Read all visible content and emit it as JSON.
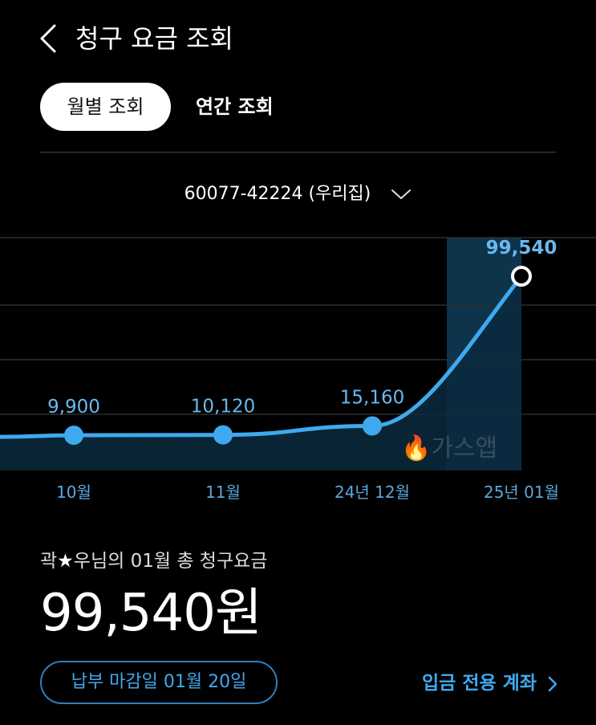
{
  "header": {
    "title": "청구 요금 조회",
    "back_icon": "chevron-left-icon"
  },
  "tabs": [
    {
      "label": "월별 조회",
      "selected": true
    },
    {
      "label": "연간 조회",
      "selected": false
    }
  ],
  "account": {
    "label": "60077-42224 (우리집)",
    "dropdown_icon": "chevron-down-icon"
  },
  "chart_data": {
    "type": "line",
    "categories": [
      "10월",
      "11월",
      "24년 12월",
      "25년 01월"
    ],
    "values": [
      9900,
      10120,
      15160,
      99540
    ],
    "value_labels": [
      "9,900",
      "10,120",
      "15,160",
      "99,540"
    ],
    "highlight_index": 3,
    "watermark": "가스앱",
    "ylim": [
      0,
      120000
    ],
    "grid": true,
    "colors": {
      "line": "#3fa9ef",
      "highlight_bg": "#0e3a52",
      "area": "#0b2a3d",
      "grid": "#2e2e2e"
    }
  },
  "summary": {
    "name_prefix": "곽",
    "name_suffix": "우님의 01월 총 청구요금",
    "amount": "99,540원"
  },
  "due": {
    "label": "납부 마감일 01월 20일"
  },
  "deposit": {
    "label": "입금 전용 계좌"
  }
}
